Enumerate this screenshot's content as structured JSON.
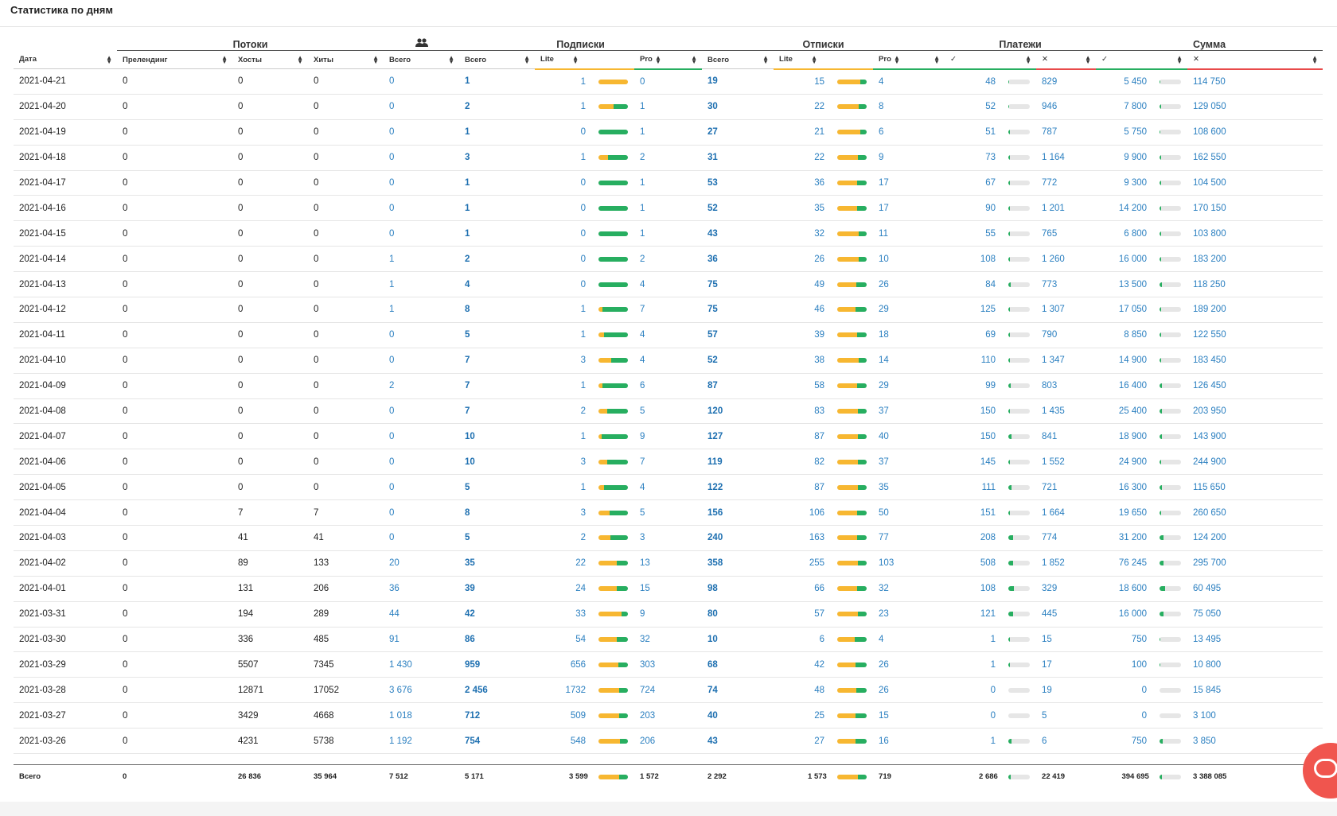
{
  "page_title": "Статистика по дням",
  "groups": {
    "flows": "Потоки",
    "subs": "Подписки",
    "unsubs": "Отписки",
    "payments": "Платежи",
    "sum": "Сумма",
    "users_icon": "users-icon"
  },
  "columns": [
    "Дата",
    "Преленд​инг",
    "Хосты",
    "Хиты",
    "Всего",
    "Всего",
    "Lite",
    "Pro",
    "Всего",
    "Lite",
    "Pro",
    "✓",
    "✕",
    "✓",
    "✕"
  ],
  "rows": [
    {
      "date": "2021-04-21",
      "prelanding": "0",
      "hosts": "0",
      "hits": "0",
      "users": "0",
      "sub_total": "1",
      "sub_lite": "1",
      "sub_lite_frac": 1.0,
      "sub_pro": "0",
      "uns_total": "19",
      "uns_lite": "15",
      "uns_lite_frac": 0.79,
      "uns_pro": "4",
      "pay_ok": "48",
      "pay_ok_frac": 0.05,
      "pay_fail": "829",
      "sum_ok": "5 450",
      "sum_ok_frac": 0.05,
      "sum_fail": "114 750"
    },
    {
      "date": "2021-04-20",
      "prelanding": "0",
      "hosts": "0",
      "hits": "0",
      "users": "0",
      "sub_total": "2",
      "sub_lite": "1",
      "sub_lite_frac": 0.5,
      "sub_pro": "1",
      "uns_total": "30",
      "uns_lite": "22",
      "uns_lite_frac": 0.73,
      "uns_pro": "8",
      "pay_ok": "52",
      "pay_ok_frac": 0.05,
      "pay_fail": "946",
      "sum_ok": "7 800",
      "sum_ok_frac": 0.06,
      "sum_fail": "129 050"
    },
    {
      "date": "2021-04-19",
      "prelanding": "0",
      "hosts": "0",
      "hits": "0",
      "users": "0",
      "sub_total": "1",
      "sub_lite": "0",
      "sub_lite_frac": 0.0,
      "sub_pro": "1",
      "uns_total": "27",
      "uns_lite": "21",
      "uns_lite_frac": 0.78,
      "uns_pro": "6",
      "pay_ok": "51",
      "pay_ok_frac": 0.06,
      "pay_fail": "787",
      "sum_ok": "5 750",
      "sum_ok_frac": 0.05,
      "sum_fail": "108 600"
    },
    {
      "date": "2021-04-18",
      "prelanding": "0",
      "hosts": "0",
      "hits": "0",
      "users": "0",
      "sub_total": "3",
      "sub_lite": "1",
      "sub_lite_frac": 0.33,
      "sub_pro": "2",
      "uns_total": "31",
      "uns_lite": "22",
      "uns_lite_frac": 0.71,
      "uns_pro": "9",
      "pay_ok": "73",
      "pay_ok_frac": 0.06,
      "pay_fail": "1 164",
      "sum_ok": "9 900",
      "sum_ok_frac": 0.06,
      "sum_fail": "162 550"
    },
    {
      "date": "2021-04-17",
      "prelanding": "0",
      "hosts": "0",
      "hits": "0",
      "users": "0",
      "sub_total": "1",
      "sub_lite": "0",
      "sub_lite_frac": 0.0,
      "sub_pro": "1",
      "uns_total": "53",
      "uns_lite": "36",
      "uns_lite_frac": 0.68,
      "uns_pro": "17",
      "pay_ok": "67",
      "pay_ok_frac": 0.08,
      "pay_fail": "772",
      "sum_ok": "9 300",
      "sum_ok_frac": 0.08,
      "sum_fail": "104 500"
    },
    {
      "date": "2021-04-16",
      "prelanding": "0",
      "hosts": "0",
      "hits": "0",
      "users": "0",
      "sub_total": "1",
      "sub_lite": "0",
      "sub_lite_frac": 0.0,
      "sub_pro": "1",
      "uns_total": "52",
      "uns_lite": "35",
      "uns_lite_frac": 0.67,
      "uns_pro": "17",
      "pay_ok": "90",
      "pay_ok_frac": 0.07,
      "pay_fail": "1 201",
      "sum_ok": "14 200",
      "sum_ok_frac": 0.08,
      "sum_fail": "170 150"
    },
    {
      "date": "2021-04-15",
      "prelanding": "0",
      "hosts": "0",
      "hits": "0",
      "users": "0",
      "sub_total": "1",
      "sub_lite": "0",
      "sub_lite_frac": 0.0,
      "sub_pro": "1",
      "uns_total": "43",
      "uns_lite": "32",
      "uns_lite_frac": 0.74,
      "uns_pro": "11",
      "pay_ok": "55",
      "pay_ok_frac": 0.07,
      "pay_fail": "765",
      "sum_ok": "6 800",
      "sum_ok_frac": 0.06,
      "sum_fail": "103 800"
    },
    {
      "date": "2021-04-14",
      "prelanding": "0",
      "hosts": "0",
      "hits": "0",
      "users": "1",
      "sub_total": "2",
      "sub_lite": "0",
      "sub_lite_frac": 0.0,
      "sub_pro": "2",
      "uns_total": "36",
      "uns_lite": "26",
      "uns_lite_frac": 0.72,
      "uns_pro": "10",
      "pay_ok": "108",
      "pay_ok_frac": 0.08,
      "pay_fail": "1 260",
      "sum_ok": "16 000",
      "sum_ok_frac": 0.08,
      "sum_fail": "183 200"
    },
    {
      "date": "2021-04-13",
      "prelanding": "0",
      "hosts": "0",
      "hits": "0",
      "users": "1",
      "sub_total": "4",
      "sub_lite": "0",
      "sub_lite_frac": 0.0,
      "sub_pro": "4",
      "uns_total": "75",
      "uns_lite": "49",
      "uns_lite_frac": 0.65,
      "uns_pro": "26",
      "pay_ok": "84",
      "pay_ok_frac": 0.1,
      "pay_fail": "773",
      "sum_ok": "13 500",
      "sum_ok_frac": 0.1,
      "sum_fail": "118 250"
    },
    {
      "date": "2021-04-12",
      "prelanding": "0",
      "hosts": "0",
      "hits": "0",
      "users": "1",
      "sub_total": "8",
      "sub_lite": "1",
      "sub_lite_frac": 0.13,
      "sub_pro": "7",
      "uns_total": "75",
      "uns_lite": "46",
      "uns_lite_frac": 0.61,
      "uns_pro": "29",
      "pay_ok": "125",
      "pay_ok_frac": 0.09,
      "pay_fail": "1 307",
      "sum_ok": "17 050",
      "sum_ok_frac": 0.08,
      "sum_fail": "189 200"
    },
    {
      "date": "2021-04-11",
      "prelanding": "0",
      "hosts": "0",
      "hits": "0",
      "users": "0",
      "sub_total": "5",
      "sub_lite": "1",
      "sub_lite_frac": 0.2,
      "sub_pro": "4",
      "uns_total": "57",
      "uns_lite": "39",
      "uns_lite_frac": 0.68,
      "uns_pro": "18",
      "pay_ok": "69",
      "pay_ok_frac": 0.08,
      "pay_fail": "790",
      "sum_ok": "8 850",
      "sum_ok_frac": 0.07,
      "sum_fail": "122 550"
    },
    {
      "date": "2021-04-10",
      "prelanding": "0",
      "hosts": "0",
      "hits": "0",
      "users": "0",
      "sub_total": "7",
      "sub_lite": "3",
      "sub_lite_frac": 0.43,
      "sub_pro": "4",
      "uns_total": "52",
      "uns_lite": "38",
      "uns_lite_frac": 0.73,
      "uns_pro": "14",
      "pay_ok": "110",
      "pay_ok_frac": 0.08,
      "pay_fail": "1 347",
      "sum_ok": "14 900",
      "sum_ok_frac": 0.08,
      "sum_fail": "183 450"
    },
    {
      "date": "2021-04-09",
      "prelanding": "0",
      "hosts": "0",
      "hits": "0",
      "users": "2",
      "sub_total": "7",
      "sub_lite": "1",
      "sub_lite_frac": 0.14,
      "sub_pro": "6",
      "uns_total": "87",
      "uns_lite": "58",
      "uns_lite_frac": 0.67,
      "uns_pro": "29",
      "pay_ok": "99",
      "pay_ok_frac": 0.11,
      "pay_fail": "803",
      "sum_ok": "16 400",
      "sum_ok_frac": 0.11,
      "sum_fail": "126 450"
    },
    {
      "date": "2021-04-08",
      "prelanding": "0",
      "hosts": "0",
      "hits": "0",
      "users": "0",
      "sub_total": "7",
      "sub_lite": "2",
      "sub_lite_frac": 0.29,
      "sub_pro": "5",
      "uns_total": "120",
      "uns_lite": "83",
      "uns_lite_frac": 0.69,
      "uns_pro": "37",
      "pay_ok": "150",
      "pay_ok_frac": 0.09,
      "pay_fail": "1 435",
      "sum_ok": "25 400",
      "sum_ok_frac": 0.11,
      "sum_fail": "203 950"
    },
    {
      "date": "2021-04-07",
      "prelanding": "0",
      "hosts": "0",
      "hits": "0",
      "users": "0",
      "sub_total": "10",
      "sub_lite": "1",
      "sub_lite_frac": 0.1,
      "sub_pro": "9",
      "uns_total": "127",
      "uns_lite": "87",
      "uns_lite_frac": 0.69,
      "uns_pro": "40",
      "pay_ok": "150",
      "pay_ok_frac": 0.15,
      "pay_fail": "841",
      "sum_ok": "18 900",
      "sum_ok_frac": 0.12,
      "sum_fail": "143 900"
    },
    {
      "date": "2021-04-06",
      "prelanding": "0",
      "hosts": "0",
      "hits": "0",
      "users": "0",
      "sub_total": "10",
      "sub_lite": "3",
      "sub_lite_frac": 0.3,
      "sub_pro": "7",
      "uns_total": "119",
      "uns_lite": "82",
      "uns_lite_frac": 0.69,
      "uns_pro": "37",
      "pay_ok": "145",
      "pay_ok_frac": 0.09,
      "pay_fail": "1 552",
      "sum_ok": "24 900",
      "sum_ok_frac": 0.09,
      "sum_fail": "244 900"
    },
    {
      "date": "2021-04-05",
      "prelanding": "0",
      "hosts": "0",
      "hits": "0",
      "users": "0",
      "sub_total": "5",
      "sub_lite": "1",
      "sub_lite_frac": 0.2,
      "sub_pro": "4",
      "uns_total": "122",
      "uns_lite": "87",
      "uns_lite_frac": 0.71,
      "uns_pro": "35",
      "pay_ok": "111",
      "pay_ok_frac": 0.13,
      "pay_fail": "721",
      "sum_ok": "16 300",
      "sum_ok_frac": 0.12,
      "sum_fail": "115 650"
    },
    {
      "date": "2021-04-04",
      "prelanding": "0",
      "hosts": "7",
      "hits": "7",
      "users": "0",
      "sub_total": "8",
      "sub_lite": "3",
      "sub_lite_frac": 0.38,
      "sub_pro": "5",
      "uns_total": "156",
      "uns_lite": "106",
      "uns_lite_frac": 0.68,
      "uns_pro": "50",
      "pay_ok": "151",
      "pay_ok_frac": 0.08,
      "pay_fail": "1 664",
      "sum_ok": "19 650",
      "sum_ok_frac": 0.07,
      "sum_fail": "260 650"
    },
    {
      "date": "2021-04-03",
      "prelanding": "0",
      "hosts": "41",
      "hits": "41",
      "users": "0",
      "sub_total": "5",
      "sub_lite": "2",
      "sub_lite_frac": 0.4,
      "sub_pro": "3",
      "uns_total": "240",
      "uns_lite": "163",
      "uns_lite_frac": 0.68,
      "uns_pro": "77",
      "pay_ok": "208",
      "pay_ok_frac": 0.21,
      "pay_fail": "774",
      "sum_ok": "31 200",
      "sum_ok_frac": 0.2,
      "sum_fail": "124 200"
    },
    {
      "date": "2021-04-02",
      "prelanding": "0",
      "hosts": "89",
      "hits": "133",
      "users": "20",
      "sub_total": "35",
      "sub_lite": "22",
      "sub_lite_frac": 0.63,
      "sub_pro": "13",
      "uns_total": "358",
      "uns_lite": "255",
      "uns_lite_frac": 0.71,
      "uns_pro": "103",
      "pay_ok": "508",
      "pay_ok_frac": 0.22,
      "pay_fail": "1 852",
      "sum_ok": "76 245",
      "sum_ok_frac": 0.2,
      "sum_fail": "295 700"
    },
    {
      "date": "2021-04-01",
      "prelanding": "0",
      "hosts": "131",
      "hits": "206",
      "users": "36",
      "sub_total": "39",
      "sub_lite": "24",
      "sub_lite_frac": 0.62,
      "sub_pro": "15",
      "uns_total": "98",
      "uns_lite": "66",
      "uns_lite_frac": 0.67,
      "uns_pro": "32",
      "pay_ok": "108",
      "pay_ok_frac": 0.25,
      "pay_fail": "329",
      "sum_ok": "18 600",
      "sum_ok_frac": 0.24,
      "sum_fail": "60 495"
    },
    {
      "date": "2021-03-31",
      "prelanding": "0",
      "hosts": "194",
      "hits": "289",
      "users": "44",
      "sub_total": "42",
      "sub_lite": "33",
      "sub_lite_frac": 0.79,
      "sub_pro": "9",
      "uns_total": "80",
      "uns_lite": "57",
      "uns_lite_frac": 0.71,
      "uns_pro": "23",
      "pay_ok": "121",
      "pay_ok_frac": 0.21,
      "pay_fail": "445",
      "sum_ok": "16 000",
      "sum_ok_frac": 0.18,
      "sum_fail": "75 050"
    },
    {
      "date": "2021-03-30",
      "prelanding": "0",
      "hosts": "336",
      "hits": "485",
      "users": "91",
      "sub_total": "86",
      "sub_lite": "54",
      "sub_lite_frac": 0.63,
      "sub_pro": "32",
      "uns_total": "10",
      "uns_lite": "6",
      "uns_lite_frac": 0.6,
      "uns_pro": "4",
      "pay_ok": "1",
      "pay_ok_frac": 0.06,
      "pay_fail": "15",
      "sum_ok": "750",
      "sum_ok_frac": 0.05,
      "sum_fail": "13 495"
    },
    {
      "date": "2021-03-29",
      "prelanding": "0",
      "hosts": "5507",
      "hits": "7345",
      "users": "1 430",
      "sub_total": "959",
      "sub_lite": "656",
      "sub_lite_frac": 0.68,
      "sub_pro": "303",
      "uns_total": "68",
      "uns_lite": "42",
      "uns_lite_frac": 0.62,
      "uns_pro": "26",
      "pay_ok": "1",
      "pay_ok_frac": 0.06,
      "pay_fail": "17",
      "sum_ok": "100",
      "sum_ok_frac": 0.01,
      "sum_fail": "10 800"
    },
    {
      "date": "2021-03-28",
      "prelanding": "0",
      "hosts": "12871",
      "hits": "17052",
      "users": "3 676",
      "sub_total": "2 456",
      "sub_lite": "1732",
      "sub_lite_frac": 0.71,
      "sub_pro": "724",
      "uns_total": "74",
      "uns_lite": "48",
      "uns_lite_frac": 0.65,
      "uns_pro": "26",
      "pay_ok": "0",
      "pay_ok_frac": 0.0,
      "pay_fail": "19",
      "sum_ok": "0",
      "sum_ok_frac": 0.0,
      "sum_fail": "15 845"
    },
    {
      "date": "2021-03-27",
      "prelanding": "0",
      "hosts": "3429",
      "hits": "4668",
      "users": "1 018",
      "sub_total": "712",
      "sub_lite": "509",
      "sub_lite_frac": 0.71,
      "sub_pro": "203",
      "uns_total": "40",
      "uns_lite": "25",
      "uns_lite_frac": 0.63,
      "uns_pro": "15",
      "pay_ok": "0",
      "pay_ok_frac": 0.0,
      "pay_fail": "5",
      "sum_ok": "0",
      "sum_ok_frac": 0.0,
      "sum_fail": "3 100"
    },
    {
      "date": "2021-03-26",
      "prelanding": "0",
      "hosts": "4231",
      "hits": "5738",
      "users": "1 192",
      "sub_total": "754",
      "sub_lite": "548",
      "sub_lite_frac": 0.73,
      "sub_pro": "206",
      "uns_total": "43",
      "uns_lite": "27",
      "uns_lite_frac": 0.63,
      "uns_pro": "16",
      "pay_ok": "1",
      "pay_ok_frac": 0.14,
      "pay_fail": "6",
      "sum_ok": "750",
      "sum_ok_frac": 0.16,
      "sum_fail": "3 850"
    }
  ],
  "totals": {
    "label": "Всего",
    "prelanding": "0",
    "hosts": "26 836",
    "hits": "35 964",
    "users": "7 512",
    "sub_total": "5 171",
    "sub_lite": "3 599",
    "sub_lite_frac": 0.7,
    "sub_pro": "1 572",
    "uns_total": "2 292",
    "uns_lite": "1 573",
    "uns_lite_frac": 0.69,
    "uns_pro": "719",
    "pay_ok": "2 686",
    "pay_ok_frac": 0.11,
    "pay_fail": "22 419",
    "sum_ok": "394 695",
    "sum_ok_frac": 0.1,
    "sum_fail": "3 388 085"
  },
  "colors": {
    "lite": "#f7b731",
    "pro": "#27ae60",
    "fail": "#e84a4a",
    "link": "#2a7fc0",
    "chat": "#f0554e"
  },
  "chat_icon": "chat-bubble-icon"
}
